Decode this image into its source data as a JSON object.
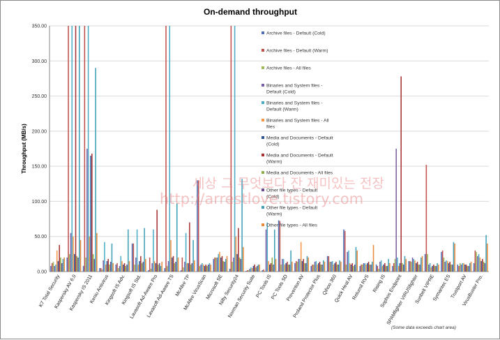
{
  "chart_data": {
    "type": "bar",
    "title": "On-demand throughput",
    "ylabel": "Throughput (MB/s)",
    "xlabel": "",
    "ylim": [
      0,
      350
    ],
    "yticks": [
      "0.00",
      "50.00",
      "100.00",
      "150.00",
      "200.00",
      "250.00",
      "300.00",
      "350.00"
    ],
    "grid": true,
    "legend_position": "right-inside",
    "footnote": "(Some data exceeds chart area)",
    "categories": [
      "K7 Total Security",
      "Kaspersky AV 6.0",
      "Kaspersky IS 2011",
      "Keniu Antivirus",
      "Kingsoft IS Adv.",
      "Kingsoft IS Std.",
      "Lavasoft Ad-Aware Pro",
      "Lavasoft Ad-Aware TS",
      "McAfee TP",
      "McAfee VirusScan",
      "Microsoft SE",
      "Nifty Security24",
      "Norman Security Suite",
      "PC Tools IS",
      "PC Tools SD",
      "Preventon AV",
      "Proland Protector Plus",
      "Qihoo 360",
      "Quick Heal AV",
      "Returnil RVS",
      "Rising IS",
      "Sophos Endpoint",
      "SPAMfighter VIRUSfighter",
      "Sunbelt VIPRE",
      "Symantec ES",
      "Trustport AV",
      "VirusBuster Pro."
    ],
    "series": [
      {
        "name": "Archive files - Default (Cold)",
        "color": "#4a6fb5",
        "values": [
          8,
          20,
          8,
          5,
          10,
          40,
          2,
          5,
          2,
          130,
          18,
          4,
          1,
          2,
          73,
          12,
          8,
          22,
          60,
          8,
          10,
          8,
          15,
          25,
          28,
          10,
          12
        ]
      },
      {
        "name": "Archive files - Default (Warm)",
        "color": "#c0504d",
        "values": [
          12,
          350,
          350,
          5,
          12,
          40,
          20,
          350,
          20,
          130,
          20,
          350,
          2,
          3,
          72,
          15,
          10,
          22,
          58,
          10,
          8,
          12,
          15,
          152,
          30,
          8,
          30
        ]
      },
      {
        "name": "Archive files - All files",
        "color": "#9bbb59",
        "values": [
          14,
          25,
          20,
          3,
          5,
          10,
          4,
          8,
          6,
          8,
          20,
          14,
          2,
          1,
          10,
          14,
          10,
          14,
          10,
          10,
          4,
          18,
          14,
          25,
          20,
          12,
          28
        ]
      },
      {
        "name": "Binaries and System files - Default (Cold)",
        "color": "#7a5fa8",
        "values": [
          8,
          55,
          175,
          16,
          8,
          20,
          12,
          15,
          14,
          10,
          20,
          20,
          4,
          60,
          18,
          18,
          14,
          14,
          28,
          12,
          14,
          175,
          20,
          10,
          14,
          10,
          22
        ]
      },
      {
        "name": "Binaries and System files - Default (Warm)",
        "color": "#4bacc6",
        "values": [
          10,
          350,
          350,
          42,
          22,
          60,
          60,
          350,
          55,
          12,
          25,
          350,
          6,
          70,
          18,
          18,
          15,
          15,
          30,
          12,
          16,
          20,
          18,
          12,
          16,
          12,
          25
        ]
      },
      {
        "name": "Binaries and System files - All files",
        "color": "#f79646",
        "values": [
          30,
          50,
          50,
          10,
          15,
          10,
          15,
          45,
          12,
          10,
          28,
          50,
          5,
          15,
          10,
          42,
          10,
          10,
          12,
          10,
          8,
          8,
          16,
          6,
          15,
          12,
          20
        ]
      },
      {
        "name": "Media and Documents - Default (Cold)",
        "color": "#2f5597",
        "values": [
          15,
          25,
          165,
          15,
          10,
          15,
          12,
          20,
          12,
          8,
          20,
          25,
          8,
          10,
          12,
          15,
          12,
          12,
          10,
          12,
          10,
          12,
          12,
          8,
          12,
          10,
          15
        ]
      },
      {
        "name": "Media and Documents - Default (Warm)",
        "color": "#a83232",
        "values": [
          38,
          350,
          168,
          18,
          12,
          22,
          88,
          22,
          70,
          10,
          22,
          62,
          10,
          12,
          14,
          18,
          14,
          14,
          12,
          14,
          12,
          278,
          14,
          10,
          14,
          10,
          18
        ]
      },
      {
        "name": "Media and Documents - All files",
        "color": "#8cb04a",
        "values": [
          20,
          22,
          25,
          10,
          8,
          12,
          10,
          12,
          10,
          8,
          15,
          20,
          6,
          20,
          10,
          12,
          10,
          10,
          8,
          10,
          8,
          12,
          10,
          8,
          10,
          8,
          14
        ]
      },
      {
        "name": "Other file types - Default (Cold)",
        "color": "#6a4c93",
        "values": [
          12,
          20,
          18,
          14,
          10,
          14,
          12,
          14,
          12,
          10,
          14,
          18,
          8,
          10,
          10,
          12,
          10,
          10,
          10,
          10,
          8,
          10,
          10,
          8,
          10,
          8,
          12
        ]
      },
      {
        "name": "Other file types - Default (Warm)",
        "color": "#3fa0b8",
        "values": [
          18,
          350,
          290,
          40,
          60,
          62,
          8,
          97,
          45,
          12,
          18,
          132,
          10,
          60,
          30,
          22,
          16,
          16,
          35,
          14,
          18,
          22,
          20,
          12,
          42,
          12,
          52
        ]
      },
      {
        "name": "Other file types - All files",
        "color": "#e9893a",
        "values": [
          20,
          45,
          55,
          12,
          15,
          18,
          14,
          20,
          16,
          10,
          22,
          35,
          10,
          18,
          14,
          20,
          14,
          14,
          30,
          38,
          12,
          18,
          22,
          10,
          40,
          14,
          40
        ]
      }
    ]
  },
  "watermark": {
    "korean": "세상 그 무엇보다 잔 재미있는 전장",
    "url": "http://arrestlove.tistory.com"
  }
}
